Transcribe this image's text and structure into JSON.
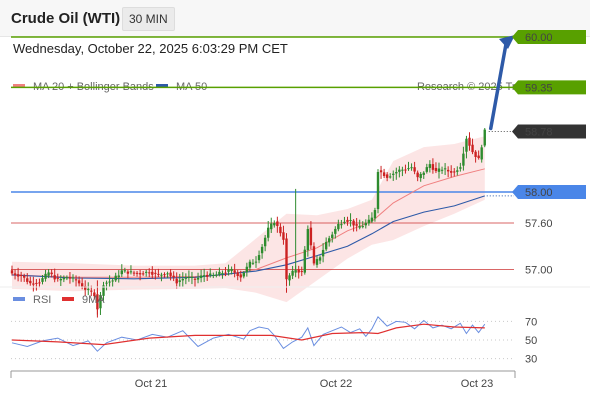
{
  "header": {
    "title": "Crude Oil (WTI)",
    "interval": "30 MIN",
    "datetime": "Wednesday, October 22, 2025 6:03:29 PM CET"
  },
  "chart_data": [
    {
      "type": "candlestick",
      "legend": [
        {
          "label": "MA 20 + Bollinger Bands",
          "color": "#f08080"
        },
        {
          "label": "MA 50",
          "color": "#2e5aa8"
        }
      ],
      "credit": "Research © 2025 Trading Central",
      "x_ticks": [
        "Oct 21",
        "Oct 22",
        "Oct 23"
      ],
      "levels": [
        {
          "value": 60.0,
          "label": "60.00",
          "kind": "target",
          "color": "#58a000"
        },
        {
          "value": 59.35,
          "label": "59.35",
          "kind": "resistance",
          "color": "#58a000"
        },
        {
          "value": 58.78,
          "label": "58.78",
          "kind": "last",
          "color": "#333333"
        },
        {
          "value": 58.0,
          "label": "58.00",
          "kind": "pivot",
          "color": "#4a86e8"
        },
        {
          "value": 57.6,
          "label": "57.60",
          "kind": "support",
          "color": "#cc3333"
        },
        {
          "value": 57.0,
          "label": "57.00",
          "kind": "support",
          "color": "#cc3333"
        }
      ],
      "candle_colors": {
        "up": "#2e8b2e",
        "down": "#cc2222"
      },
      "price_path": [
        [
          0,
          56.95
        ],
        [
          3,
          56.92
        ],
        [
          6,
          56.82
        ],
        [
          9,
          56.84
        ],
        [
          12,
          56.96
        ],
        [
          15,
          56.86
        ],
        [
          18,
          56.9
        ],
        [
          21,
          56.86
        ],
        [
          24,
          56.75
        ],
        [
          27,
          56.68
        ],
        [
          28,
          56.5
        ],
        [
          30,
          56.82
        ],
        [
          33,
          56.86
        ],
        [
          36,
          56.98
        ],
        [
          39,
          56.96
        ],
        [
          42,
          56.95
        ],
        [
          45,
          56.97
        ],
        [
          48,
          56.93
        ],
        [
          51,
          56.96
        ],
        [
          54,
          56.84
        ],
        [
          57,
          56.9
        ],
        [
          60,
          56.87
        ],
        [
          63,
          56.93
        ],
        [
          66,
          56.92
        ],
        [
          69,
          56.96
        ],
        [
          72,
          56.99
        ],
        [
          75,
          56.91
        ],
        [
          78,
          57.08
        ],
        [
          80,
          57.12
        ],
        [
          82,
          57.3
        ],
        [
          84,
          57.52
        ],
        [
          86,
          57.62
        ],
        [
          88,
          57.48
        ],
        [
          89,
          57.4
        ],
        [
          90,
          56.86
        ],
        [
          91,
          56.92
        ],
        [
          93,
          57.0
        ],
        [
          95,
          56.96
        ],
        [
          97,
          57.54
        ],
        [
          99,
          57.06
        ],
        [
          101,
          57.17
        ],
        [
          103,
          57.35
        ],
        [
          105,
          57.46
        ],
        [
          107,
          57.58
        ],
        [
          109,
          57.64
        ],
        [
          111,
          57.63
        ],
        [
          113,
          57.54
        ],
        [
          115,
          57.57
        ],
        [
          117,
          57.62
        ],
        [
          118,
          57.66
        ],
        [
          119,
          57.78
        ],
        [
          120,
          58.28
        ],
        [
          123,
          58.2
        ],
        [
          125,
          58.24
        ],
        [
          127,
          58.28
        ],
        [
          129,
          58.3
        ],
        [
          131,
          58.32
        ],
        [
          133,
          58.18
        ],
        [
          135,
          58.26
        ],
        [
          137,
          58.36
        ],
        [
          139,
          58.26
        ],
        [
          141,
          58.3
        ],
        [
          143,
          58.27
        ],
        [
          145,
          58.26
        ],
        [
          147,
          58.34
        ],
        [
          149,
          58.7
        ],
        [
          151,
          58.52
        ],
        [
          153,
          58.42
        ],
        [
          155,
          58.78
        ]
      ],
      "ma50": [
        [
          0,
          56.93
        ],
        [
          20,
          56.89
        ],
        [
          40,
          56.88
        ],
        [
          60,
          56.9
        ],
        [
          80,
          56.98
        ],
        [
          90,
          57.06
        ],
        [
          100,
          57.18
        ],
        [
          110,
          57.3
        ],
        [
          118,
          57.46
        ],
        [
          125,
          57.62
        ],
        [
          135,
          57.74
        ],
        [
          145,
          57.82
        ],
        [
          155,
          57.95
        ]
      ],
      "bollinger": {
        "middle": [
          [
            0,
            56.93
          ],
          [
            20,
            56.9
          ],
          [
            40,
            56.9
          ],
          [
            60,
            56.91
          ],
          [
            70,
            56.93
          ],
          [
            80,
            57.0
          ],
          [
            90,
            57.15
          ],
          [
            100,
            57.28
          ],
          [
            110,
            57.5
          ],
          [
            118,
            57.62
          ],
          [
            125,
            57.86
          ],
          [
            135,
            58.08
          ],
          [
            145,
            58.2
          ],
          [
            155,
            58.3
          ]
        ],
        "upper": [
          [
            0,
            57.1
          ],
          [
            20,
            57.08
          ],
          [
            40,
            57.05
          ],
          [
            60,
            57.05
          ],
          [
            70,
            57.08
          ],
          [
            80,
            57.4
          ],
          [
            90,
            57.72
          ],
          [
            100,
            57.7
          ],
          [
            110,
            57.78
          ],
          [
            118,
            57.9
          ],
          [
            125,
            58.4
          ],
          [
            135,
            58.58
          ],
          [
            145,
            58.62
          ],
          [
            155,
            58.72
          ]
        ],
        "lower": [
          [
            0,
            56.75
          ],
          [
            20,
            56.72
          ],
          [
            40,
            56.74
          ],
          [
            60,
            56.75
          ],
          [
            70,
            56.76
          ],
          [
            80,
            56.7
          ],
          [
            90,
            56.58
          ],
          [
            100,
            56.86
          ],
          [
            110,
            57.14
          ],
          [
            118,
            57.32
          ],
          [
            125,
            57.38
          ],
          [
            135,
            57.56
          ],
          [
            145,
            57.72
          ],
          [
            155,
            57.9
          ]
        ]
      },
      "projection": {
        "from": 58.82,
        "to": 60.0
      }
    },
    {
      "type": "line",
      "legend": [
        {
          "label": "RSI",
          "color": "#6a8ee0"
        },
        {
          "label": "9MA",
          "color": "#e03030"
        }
      ],
      "y_ticks": [
        "70",
        "50",
        "30"
      ],
      "series": [
        {
          "name": "RSI",
          "color": "#6a8ee0",
          "values": [
            [
              0,
              47
            ],
            [
              5,
              43
            ],
            [
              10,
              49
            ],
            [
              15,
              52
            ],
            [
              20,
              44
            ],
            [
              25,
              49
            ],
            [
              28,
              38
            ],
            [
              31,
              47
            ],
            [
              36,
              53
            ],
            [
              41,
              50
            ],
            [
              46,
              56
            ],
            [
              51,
              53
            ],
            [
              56,
              60
            ],
            [
              61,
              43
            ],
            [
              66,
              52
            ],
            [
              71,
              56
            ],
            [
              76,
              51
            ],
            [
              78,
              60
            ],
            [
              81,
              64
            ],
            [
              84,
              62
            ],
            [
              86,
              55
            ],
            [
              89,
              41
            ],
            [
              92,
              48
            ],
            [
              95,
              53
            ],
            [
              97,
              63
            ],
            [
              99,
              44
            ],
            [
              102,
              56
            ],
            [
              105,
              60
            ],
            [
              108,
              64
            ],
            [
              111,
              58
            ],
            [
              114,
              62
            ],
            [
              116,
              54
            ],
            [
              118,
              62
            ],
            [
              120,
              75
            ],
            [
              123,
              65
            ],
            [
              126,
              70
            ],
            [
              129,
              69
            ],
            [
              132,
              62
            ],
            [
              135,
              71
            ],
            [
              138,
              63
            ],
            [
              141,
              66
            ],
            [
              144,
              62
            ],
            [
              147,
              68
            ],
            [
              149,
              57
            ],
            [
              151,
              66
            ],
            [
              153,
              58
            ],
            [
              155,
              67
            ]
          ]
        },
        {
          "name": "9MA",
          "color": "#e03030",
          "values": [
            [
              0,
              50
            ],
            [
              15,
              48
            ],
            [
              30,
              45
            ],
            [
              45,
              52
            ],
            [
              60,
              55
            ],
            [
              75,
              55
            ],
            [
              85,
              55
            ],
            [
              95,
              50
            ],
            [
              105,
              57
            ],
            [
              115,
              58
            ],
            [
              120,
              57
            ],
            [
              126,
              63
            ],
            [
              135,
              67
            ],
            [
              145,
              64
            ],
            [
              155,
              63
            ]
          ]
        }
      ]
    }
  ]
}
